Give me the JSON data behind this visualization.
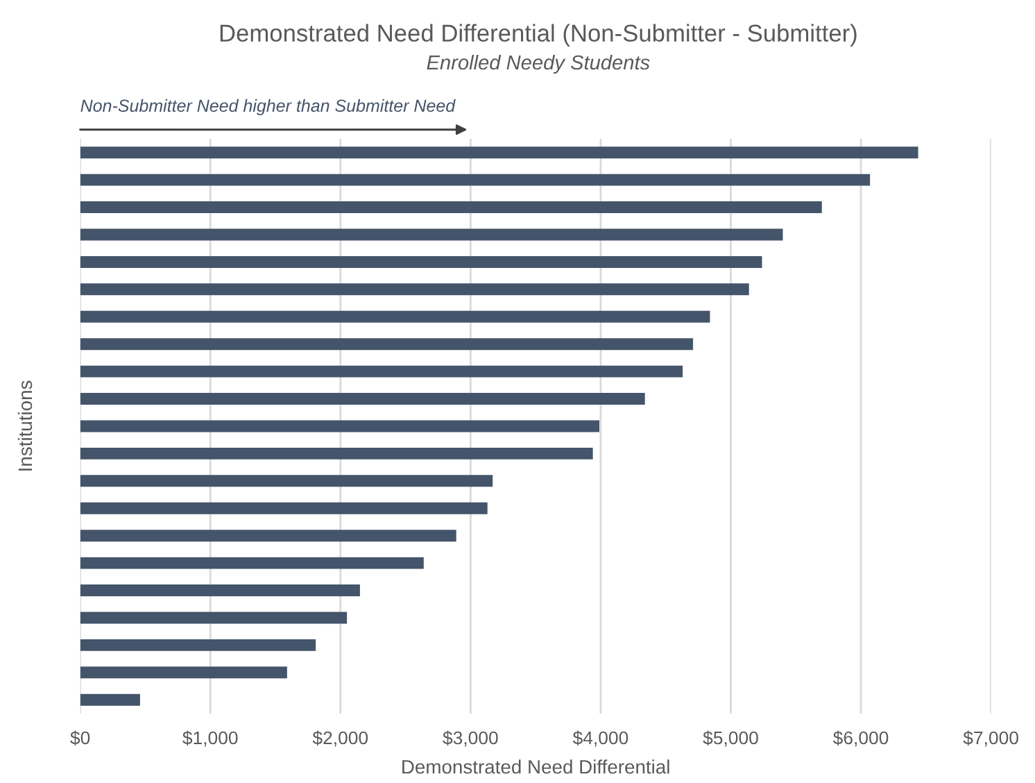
{
  "chart_data": {
    "type": "bar",
    "orientation": "horizontal",
    "title": "Demonstrated Need Differential (Non-Submitter - Submitter)",
    "subtitle": "Enrolled Needy Students",
    "xlabel": "Demonstrated Need Differential",
    "ylabel": "Institutions",
    "annotations": [
      "Non-Submitter Need higher than Submitter Need"
    ],
    "categories": [
      null,
      null,
      null,
      null,
      null,
      null,
      null,
      null,
      null,
      null,
      null,
      null,
      null,
      null,
      null,
      null,
      null,
      null,
      null,
      null,
      null
    ],
    "values": [
      6440,
      6070,
      5700,
      5400,
      5240,
      5140,
      4840,
      4710,
      4630,
      4340,
      3990,
      3940,
      3170,
      3130,
      2890,
      2640,
      2150,
      2050,
      1810,
      1590,
      460
    ],
    "color": "#44546a",
    "xlim": [
      0,
      7000
    ],
    "xticks": [
      {
        "value": 0,
        "label": "$0"
      },
      {
        "value": 1000,
        "label": "$1,000"
      },
      {
        "value": 2000,
        "label": "$2,000"
      },
      {
        "value": 3000,
        "label": "$3,000"
      },
      {
        "value": 4000,
        "label": "$4,000"
      },
      {
        "value": 5000,
        "label": "$5,000"
      },
      {
        "value": 6000,
        "label": "$6,000"
      },
      {
        "value": 7000,
        "label": "$7,000"
      }
    ],
    "grid": "x"
  }
}
